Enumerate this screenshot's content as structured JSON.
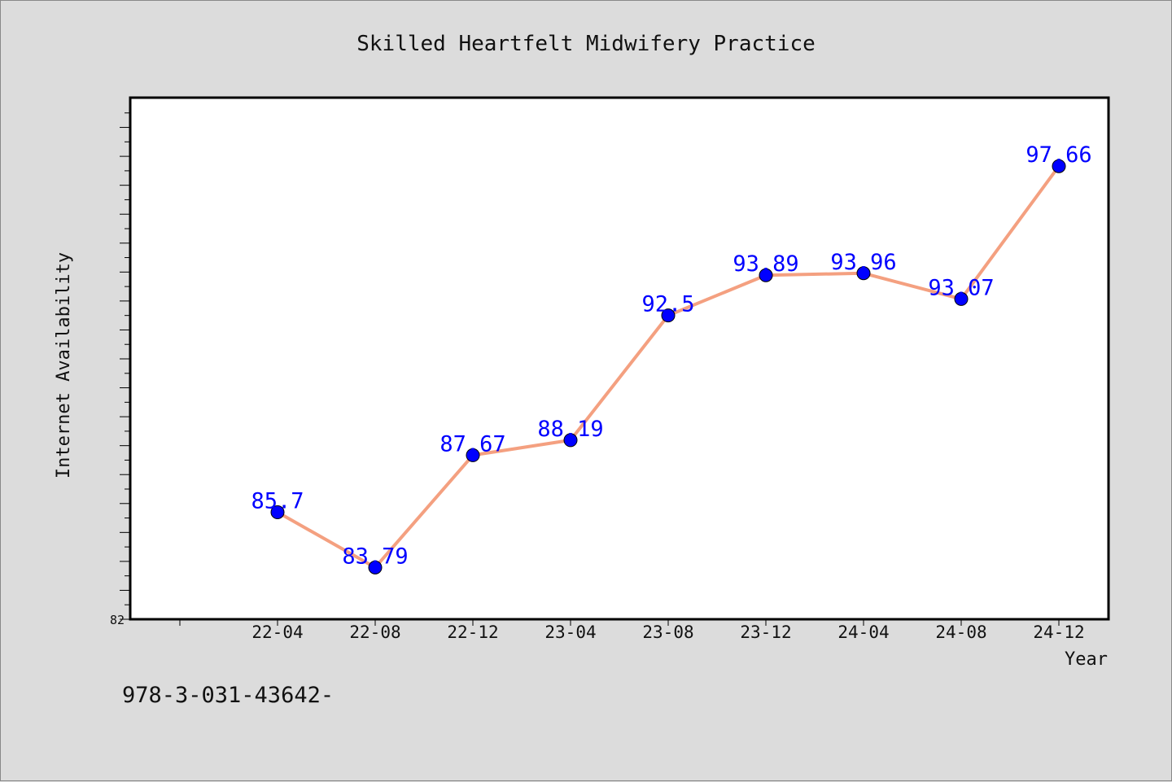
{
  "footnote": "978-3-031-43642-",
  "chart_data": {
    "type": "line",
    "title": "Skilled Heartfelt Midwifery Practice",
    "xlabel": "Year",
    "ylabel": "Internet Availability",
    "categories": [
      "22-04",
      "22-08",
      "22-12",
      "23-04",
      "23-08",
      "23-12",
      "24-04",
      "24-08",
      "24-12"
    ],
    "series": [
      {
        "values": [
          85.7,
          83.79,
          87.67,
          88.19,
          92.5,
          93.89,
          93.96,
          93.07,
          97.66
        ],
        "data_labels": [
          "85.7",
          "83.79",
          "87.67",
          "88.19",
          "92.5",
          "93.89",
          "93.96",
          "93.07",
          "97.66"
        ]
      }
    ],
    "ylim": [
      82,
      100
    ],
    "yticks_labeled": [
      "82"
    ],
    "grid": false,
    "line_color": "#f4a080",
    "marker_color": "#0000ff",
    "label_color": "#0000ff",
    "plot_background": "#ffffff",
    "page_background": "#dcdcdc"
  }
}
